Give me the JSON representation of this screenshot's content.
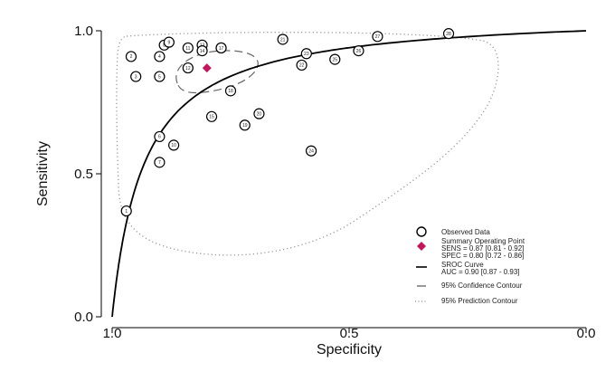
{
  "chart_data": {
    "type": "scatter",
    "xlabel": "Specificity",
    "ylabel": "Sensitivity",
    "xlim": [
      1.0,
      0.0
    ],
    "ylim": [
      0.0,
      1.0
    ],
    "x_ticks": [
      "1.0",
      "0.5",
      "0.0"
    ],
    "y_ticks": [
      "0.0",
      "0.5",
      "1.0"
    ],
    "grid": false,
    "legend_position": "bottom-right",
    "observed_data": {
      "name": "Observed Data",
      "points": [
        {
          "label": "1",
          "spec": 0.97,
          "sens": 0.37
        },
        {
          "label": "2",
          "spec": 0.96,
          "sens": 0.91
        },
        {
          "label": "3",
          "spec": 0.95,
          "sens": 0.84
        },
        {
          "label": "4",
          "spec": 0.9,
          "sens": 0.91
        },
        {
          "label": "5",
          "spec": 0.9,
          "sens": 0.84
        },
        {
          "label": "6",
          "spec": 0.9,
          "sens": 0.63
        },
        {
          "label": "7",
          "spec": 0.9,
          "sens": 0.54
        },
        {
          "label": "8",
          "spec": 0.89,
          "sens": 0.95
        },
        {
          "label": "9",
          "spec": 0.88,
          "sens": 0.96
        },
        {
          "label": "10",
          "spec": 0.87,
          "sens": 0.6
        },
        {
          "label": "11",
          "spec": 0.84,
          "sens": 0.94
        },
        {
          "label": "12",
          "spec": 0.84,
          "sens": 0.87
        },
        {
          "label": "13",
          "spec": 0.81,
          "sens": 0.95
        },
        {
          "label": "14",
          "spec": 0.81,
          "sens": 0.93
        },
        {
          "label": "15",
          "spec": 0.79,
          "sens": 0.7
        },
        {
          "label": "16",
          "spec": 0.77,
          "sens": 0.94
        },
        {
          "label": "17",
          "spec": 0.77,
          "sens": 0.94
        },
        {
          "label": "18",
          "spec": 0.75,
          "sens": 0.79
        },
        {
          "label": "19",
          "spec": 0.72,
          "sens": 0.67
        },
        {
          "label": "20",
          "spec": 0.69,
          "sens": 0.71
        },
        {
          "label": "21",
          "spec": 0.64,
          "sens": 0.97
        },
        {
          "label": "22",
          "spec": 0.6,
          "sens": 0.88
        },
        {
          "label": "23",
          "spec": 0.59,
          "sens": 0.92
        },
        {
          "label": "24",
          "spec": 0.58,
          "sens": 0.58
        },
        {
          "label": "25",
          "spec": 0.53,
          "sens": 0.9
        },
        {
          "label": "26",
          "spec": 0.48,
          "sens": 0.93
        },
        {
          "label": "27",
          "spec": 0.44,
          "sens": 0.98
        },
        {
          "label": "28",
          "spec": 0.29,
          "sens": 0.99
        }
      ]
    },
    "summary_point": {
      "spec": 0.8,
      "sens": 0.87,
      "color": "#c2185b"
    },
    "sroc_curve": {
      "auc": 0.9
    },
    "confidence_contour": {
      "spec_range": [
        0.72,
        0.86
      ],
      "sens_range": [
        0.81,
        0.92
      ]
    },
    "legend": [
      {
        "symbol": "circle",
        "lines": [
          "Observed Data"
        ]
      },
      {
        "symbol": "diamond",
        "lines": [
          "Summary Operating Point",
          "SENS = 0.87 [0.81 - 0.92]",
          "SPEC = 0.80 [0.72 - 0.86]"
        ]
      },
      {
        "symbol": "line-solid",
        "lines": [
          "SROC Curve",
          "AUC = 0.90 [0.87 - 0.93]"
        ]
      },
      {
        "symbol": "line-dashed",
        "lines": [
          "95% Confidence Contour"
        ]
      },
      {
        "symbol": "line-dotted",
        "lines": [
          "95% Prediction Contour"
        ]
      }
    ]
  }
}
